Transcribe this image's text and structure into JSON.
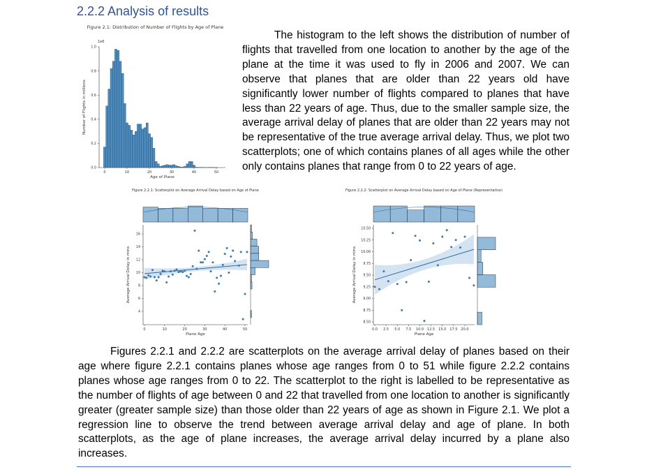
{
  "heading": "2.2.2 Analysis of results",
  "paragraph1": "The histogram to the left shows the distribution of number of flights that travelled from one location to another by the age of the plane at the time it was used to fly in 2006 and 2007. We can observe that planes that are older than 22 years old have significantly lower number of flights compared to planes that have less than 22 years of age. Thus, due to the smaller sample size, the average arrival delay of planes that are older than 22 years may not be representative of the true average arrival delay. Thus, we plot two scatterplots; one of which contains planes of all ages while the other only contains planes that range from 0 to 22 years of age.",
  "paragraph2": "Figures 2.2.1 and 2.2.2 are scatterplots on the average arrival delay of planes based on their age where figure 2.2.1 contains planes whose age ranges from 0 to 51 while figure 2.2.2 contains planes whose age ranges from 0 to 22. The scatterplot to the right is labelled to be representative as the number of flights of age between 0 and 22 that travelled from one location to another is significantly greater (greater sample size) than those older than 22 years of age as shown in Figure 2.1. We plot a regression line to observe the trend between average arrival delay and age of plane. In both scatterplots, as the age of plane increases, the average arrival delay incurred by a plane also increases.",
  "colors": {
    "bar": "#4c8cbf",
    "point": "#3a78b0",
    "line": "#2a6aa5",
    "band": "#c9dcee"
  },
  "chart_data": [
    {
      "type": "bar",
      "title": "Figure 2.1: Distribution of Number of Flights by Age of Plane",
      "xlabel": "Age of Plane",
      "ylabel": "Number of Flights in millions",
      "offset_label": "1e6",
      "xlim": [
        -2,
        54
      ],
      "ylim": [
        0,
        1.0
      ],
      "xticks": [
        "0",
        "10",
        "20",
        "30",
        "40",
        "50"
      ],
      "yticks": [
        "0.0",
        "0.2",
        "0.4",
        "0.6",
        "0.8",
        "1.0"
      ],
      "x": [
        0,
        1,
        2,
        3,
        4,
        5,
        6,
        7,
        8,
        9,
        10,
        11,
        12,
        13,
        14,
        15,
        16,
        17,
        18,
        19,
        20,
        21,
        22,
        23,
        24,
        25,
        26,
        27,
        28,
        29,
        30,
        31,
        32,
        33,
        34,
        35,
        36,
        37,
        38,
        39,
        40,
        41,
        42,
        43,
        44,
        45,
        46,
        47,
        48,
        49,
        50
      ],
      "values": [
        0.17,
        0.51,
        0.65,
        0.82,
        0.88,
        0.98,
        0.97,
        0.88,
        0.78,
        0.53,
        0.37,
        0.35,
        0.31,
        0.27,
        0.3,
        0.36,
        0.36,
        0.32,
        0.33,
        0.37,
        0.28,
        0.25,
        0.16,
        0.05,
        0.03,
        0.01,
        0.015,
        0.02,
        0.025,
        0.02,
        0.02,
        0.025,
        0.015,
        0.01,
        0.005,
        0.005,
        0.01,
        0.03,
        0.05,
        0.05,
        0.02,
        0.003,
        0.002,
        0.002,
        0.002,
        0.001,
        0.001,
        0.002,
        0.002,
        0.001,
        0.001
      ]
    },
    {
      "type": "scatter",
      "title": "Figure 2.2.1: Scatterplot on Average Arrival Delay based on Age of Plane",
      "xlabel": "Plane Age",
      "ylabel": "Average Arrival Delay in mins",
      "xlim": [
        0,
        51
      ],
      "ylim": [
        2.5,
        17
      ],
      "xticks": [
        "0",
        "10",
        "20",
        "30",
        "40",
        "50"
      ],
      "yticks": [
        "4",
        "6",
        "8",
        "10",
        "12",
        "14",
        "16"
      ],
      "x": [
        0,
        1,
        2,
        3,
        4,
        5,
        6,
        7,
        8,
        9,
        10,
        11,
        12,
        13,
        14,
        15,
        16,
        17,
        18,
        19,
        20,
        21,
        22,
        23,
        24,
        25,
        26,
        27,
        28,
        29,
        30,
        31,
        32,
        33,
        34,
        35,
        36,
        37,
        38,
        39,
        40,
        41,
        42,
        43,
        44,
        45,
        47,
        48,
        49,
        50,
        51
      ],
      "y": [
        9.3,
        9.2,
        9.6,
        9.4,
        10.4,
        9.3,
        8.8,
        9.3,
        9.8,
        10.3,
        10.2,
        8.5,
        9.4,
        10.2,
        9.7,
        10.3,
        10.5,
        10.1,
        10.2,
        10.1,
        10.3,
        9.5,
        9.3,
        9.8,
        11.0,
        16.5,
        10.6,
        13.4,
        11.6,
        11.6,
        12.1,
        12.6,
        13.2,
        10.2,
        11.6,
        7.1,
        9.2,
        8.3,
        9.5,
        11.2,
        12.9,
        13.8,
        10.0,
        12.5,
        13.4,
        11.8,
        11.1,
        13.2,
        2.8,
        6.7,
        13.2
      ],
      "regression": [
        [
          0,
          9.85
        ],
        [
          51,
          11.25
        ]
      ]
    },
    {
      "type": "scatter",
      "title": "Figure 2.2.2: Scatterplot on Average Arrival Delay based on Age of Plane (Representative)",
      "xlabel": "Plane Age",
      "ylabel": "Average Arrival Delay in mins",
      "xlim": [
        0,
        22.5
      ],
      "ylim": [
        8.45,
        10.57
      ],
      "xticks": [
        "0.0",
        "2.5",
        "5.0",
        "7.5",
        "10.0",
        "12.5",
        "15.0",
        "17.5",
        "20.0"
      ],
      "yticks": [
        "8.50",
        "8.75",
        "9.00",
        "9.25",
        "9.50",
        "9.75",
        "10.00",
        "10.25",
        "10.50"
      ],
      "x": [
        0,
        1,
        2,
        3,
        4,
        5,
        6,
        7,
        8,
        9,
        10,
        11,
        12,
        13,
        14,
        15,
        16,
        17,
        18,
        19,
        20,
        21,
        22
      ],
      "y": [
        9.25,
        9.2,
        9.58,
        9.37,
        10.4,
        9.31,
        8.75,
        9.35,
        9.82,
        10.34,
        10.24,
        8.52,
        9.36,
        10.18,
        9.71,
        10.32,
        10.46,
        10.1,
        10.25,
        10.09,
        10.32,
        9.44,
        9.28
      ],
      "regression": [
        [
          0,
          9.4
        ],
        [
          22,
          10.05
        ]
      ]
    }
  ]
}
